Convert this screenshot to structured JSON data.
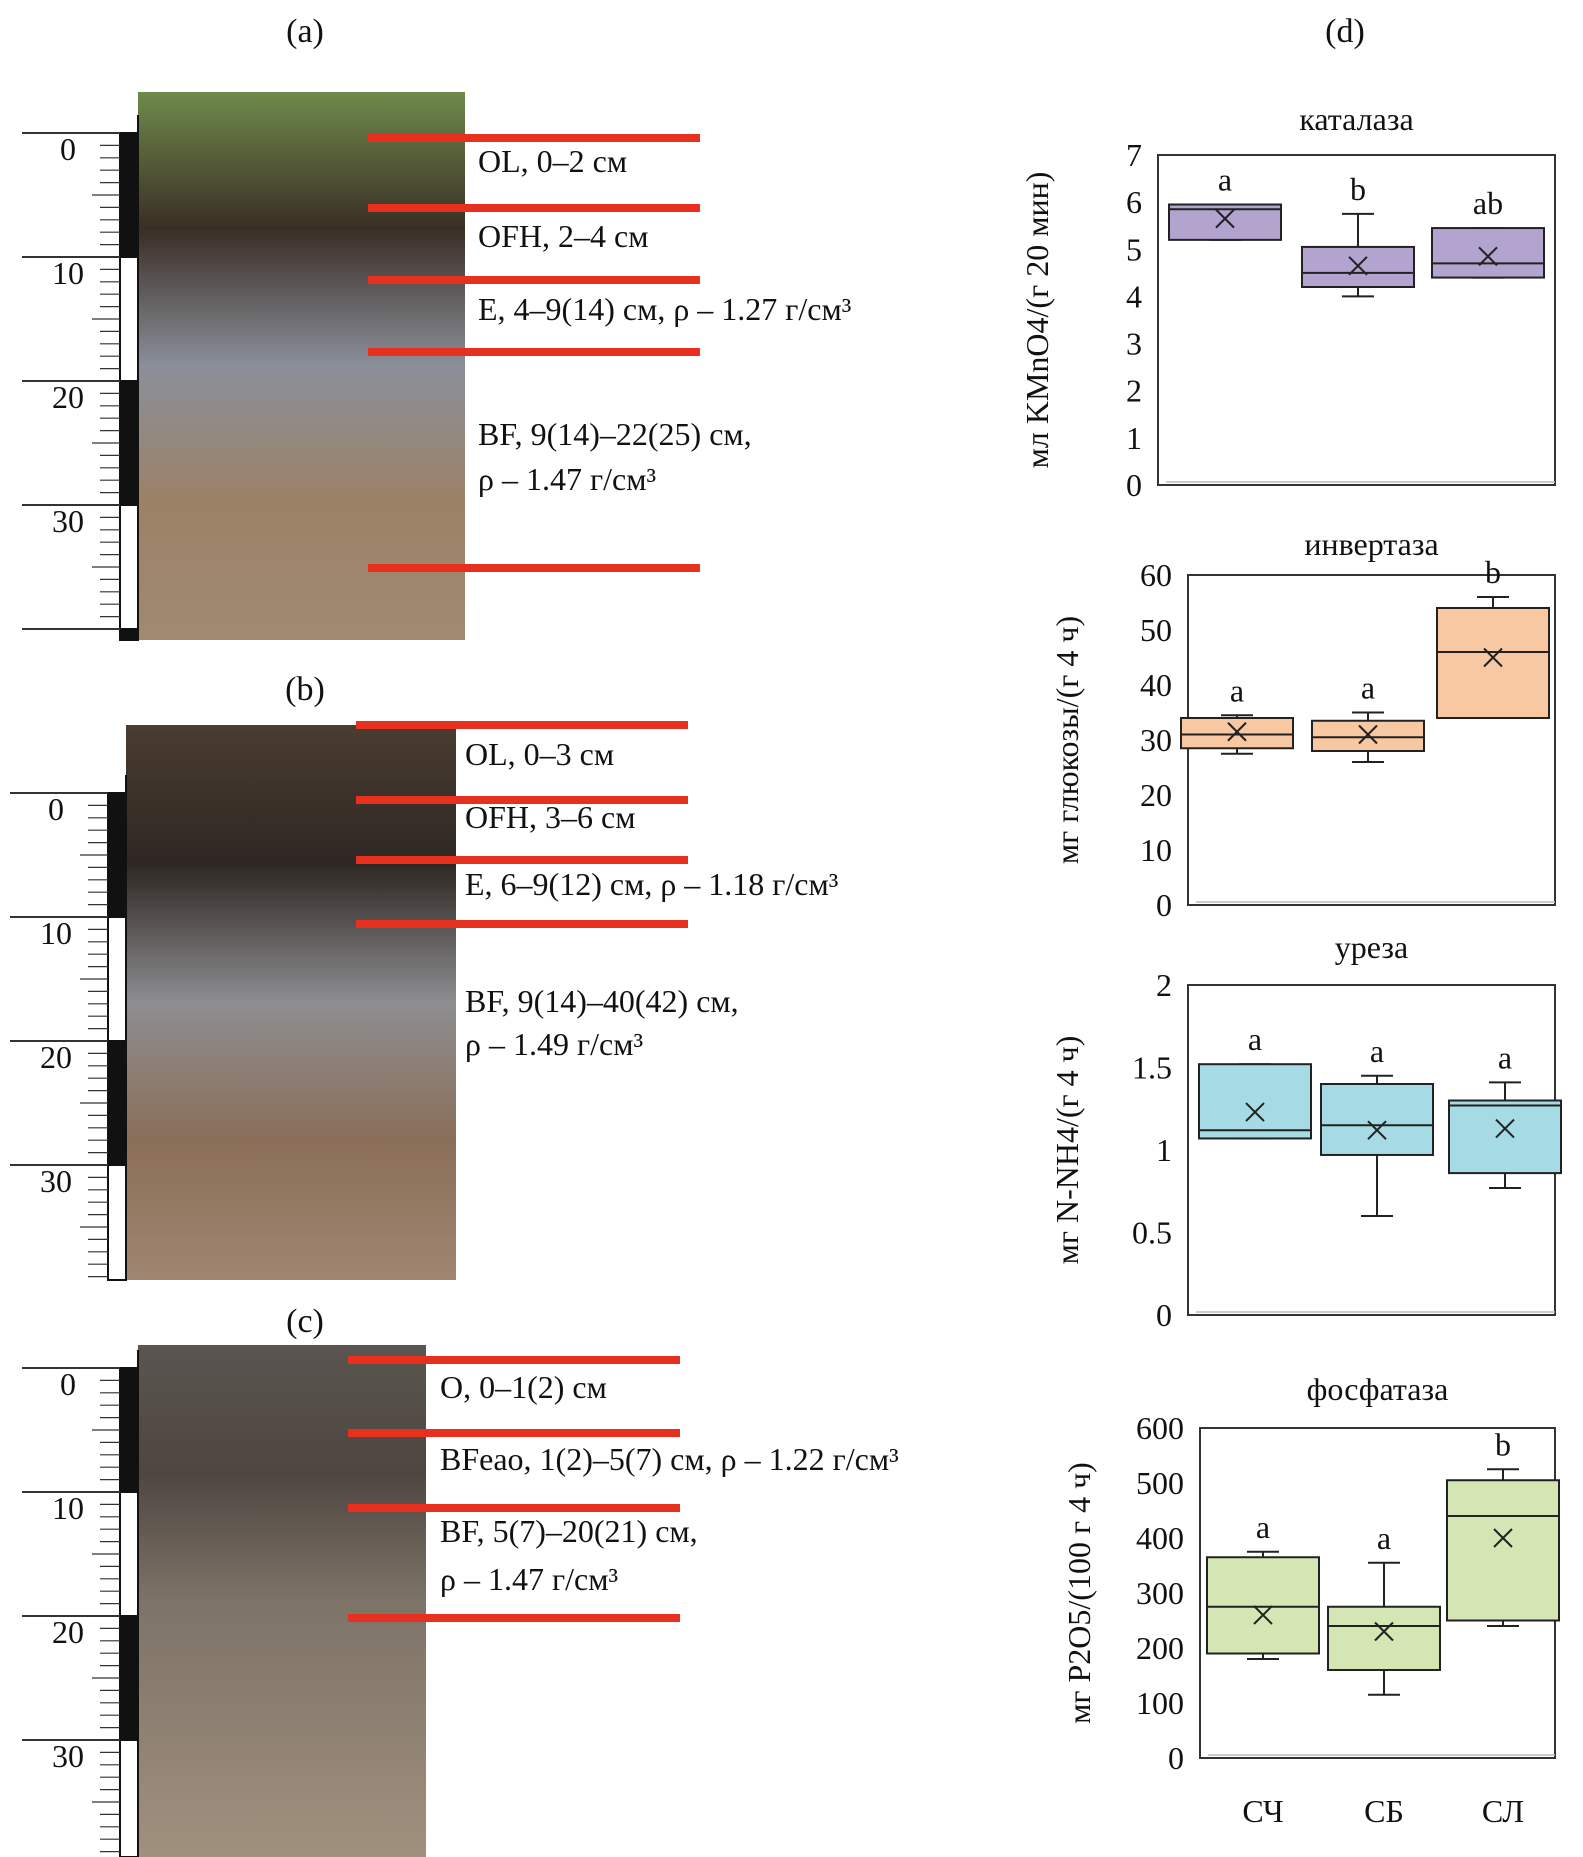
{
  "panel_labels": {
    "a": "(a)",
    "b": "(b)",
    "c": "(c)",
    "d": "(d)"
  },
  "ruler_ticks": [
    "0",
    "10",
    "20",
    "30"
  ],
  "profiles": [
    {
      "id": "a",
      "photo_colors": [
        "#6f8a4a",
        "#3a2e25",
        "#8a8f99",
        "#9c8166",
        "#a08a72"
      ],
      "horizons": [
        {
          "line1": "OL, 0–2 см",
          "line2": ""
        },
        {
          "line1": "OFH, 2–4 см",
          "line2": ""
        },
        {
          "line1": "E, 4–9(14) см, ρ – 1.27 г/см³",
          "line2": ""
        },
        {
          "line1": "BF, 9(14)–22(25) см,",
          "line2": "ρ – 1.47 г/см³"
        }
      ]
    },
    {
      "id": "b",
      "photo_colors": [
        "#4a3c30",
        "#2e2723",
        "#8d8d90",
        "#8a6e58",
        "#a08670"
      ],
      "horizons": [
        {
          "line1": "OL, 0–3 см",
          "line2": ""
        },
        {
          "line1": "OFH, 3–6 см",
          "line2": ""
        },
        {
          "line1": "E, 6–9(12) см, ρ – 1.18 г/см³",
          "line2": ""
        },
        {
          "line1": "BF, 9(14)–40(42) см,",
          "line2": "ρ – 1.49 г/см³"
        }
      ]
    },
    {
      "id": "c",
      "photo_colors": [
        "#5a5550",
        "#4e4640",
        "#7d7368",
        "#8f8172",
        "#a0907e"
      ],
      "horizons": [
        {
          "line1": "O, 0–1(2) см",
          "line2": ""
        },
        {
          "line1": "BFeao, 1(2)–5(7) см, ρ – 1.22 г/см³",
          "line2": ""
        },
        {
          "line1": "BF, 5(7)–20(21) см,",
          "line2": "ρ – 1.47 г/см³"
        }
      ]
    }
  ],
  "chart_data": [
    {
      "type": "box",
      "title": "каталаза",
      "ylabel": "мл KMnO4/(г 20 мин)",
      "ylim": [
        0,
        7
      ],
      "yticks": [
        0,
        1,
        2,
        3,
        4,
        5,
        6,
        7
      ],
      "categories": [
        "СЧ",
        "СБ",
        "СЛ"
      ],
      "color": "#b3a4cf",
      "boxes": [
        {
          "min": 5.2,
          "q1": 5.2,
          "median": 5.85,
          "q3": 5.95,
          "max": 5.95,
          "mean": 5.65,
          "letter": "a"
        },
        {
          "min": 4.0,
          "q1": 4.2,
          "median": 4.5,
          "q3": 5.05,
          "max": 5.75,
          "mean": 4.65,
          "letter": "b"
        },
        {
          "min": 4.4,
          "q1": 4.4,
          "median": 4.7,
          "q3": 5.45,
          "max": 5.45,
          "mean": 4.85,
          "letter": "ab"
        }
      ]
    },
    {
      "type": "box",
      "title": "инвертаза",
      "ylabel": "мг глюкозы/(г 4 ч)",
      "ylim": [
        0,
        60
      ],
      "yticks": [
        0,
        10,
        20,
        30,
        40,
        50,
        60
      ],
      "categories": [
        "СЧ",
        "СБ",
        "СЛ"
      ],
      "color": "#f7c8a2",
      "boxes": [
        {
          "min": 27.5,
          "q1": 28.5,
          "median": 31,
          "q3": 34,
          "max": 34.5,
          "mean": 31.5,
          "letter": "a"
        },
        {
          "min": 26,
          "q1": 28,
          "median": 30.5,
          "q3": 33.5,
          "max": 35,
          "mean": 31,
          "letter": "a"
        },
        {
          "min": 34,
          "q1": 34,
          "median": 46,
          "q3": 54,
          "max": 56,
          "mean": 45,
          "letter": "b"
        }
      ]
    },
    {
      "type": "box",
      "title": "уреза",
      "ylabel": "мг N-NH4/(г 4 ч)",
      "ylim": [
        0,
        2
      ],
      "yticks": [
        0,
        0.5,
        1,
        1.5,
        2
      ],
      "categories": [
        "СЧ",
        "СБ",
        "СЛ"
      ],
      "color": "#a6dbe5",
      "boxes": [
        {
          "min": 1.07,
          "q1": 1.07,
          "median": 1.12,
          "q3": 1.52,
          "max": 1.52,
          "mean": 1.23,
          "letter": "a"
        },
        {
          "min": 0.6,
          "q1": 0.97,
          "median": 1.15,
          "q3": 1.4,
          "max": 1.45,
          "mean": 1.12,
          "letter": "a"
        },
        {
          "min": 0.77,
          "q1": 0.86,
          "median": 1.27,
          "q3": 1.3,
          "max": 1.41,
          "mean": 1.13,
          "letter": "a"
        }
      ]
    },
    {
      "type": "box",
      "title": "фосфатаза",
      "ylabel": "мг P2O5/(100 г 4 ч)",
      "ylim": [
        0,
        600
      ],
      "yticks": [
        0,
        100,
        200,
        300,
        400,
        500,
        600
      ],
      "categories": [
        "СЧ",
        "СБ",
        "СЛ"
      ],
      "color": "#d4e6b3",
      "boxes": [
        {
          "min": 180,
          "q1": 190,
          "median": 275,
          "q3": 365,
          "max": 375,
          "mean": 260,
          "letter": "a"
        },
        {
          "min": 115,
          "q1": 160,
          "median": 240,
          "q3": 275,
          "max": 355,
          "mean": 230,
          "letter": "a"
        },
        {
          "min": 240,
          "q1": 250,
          "median": 440,
          "q3": 505,
          "max": 525,
          "mean": 400,
          "letter": "b"
        }
      ]
    }
  ]
}
